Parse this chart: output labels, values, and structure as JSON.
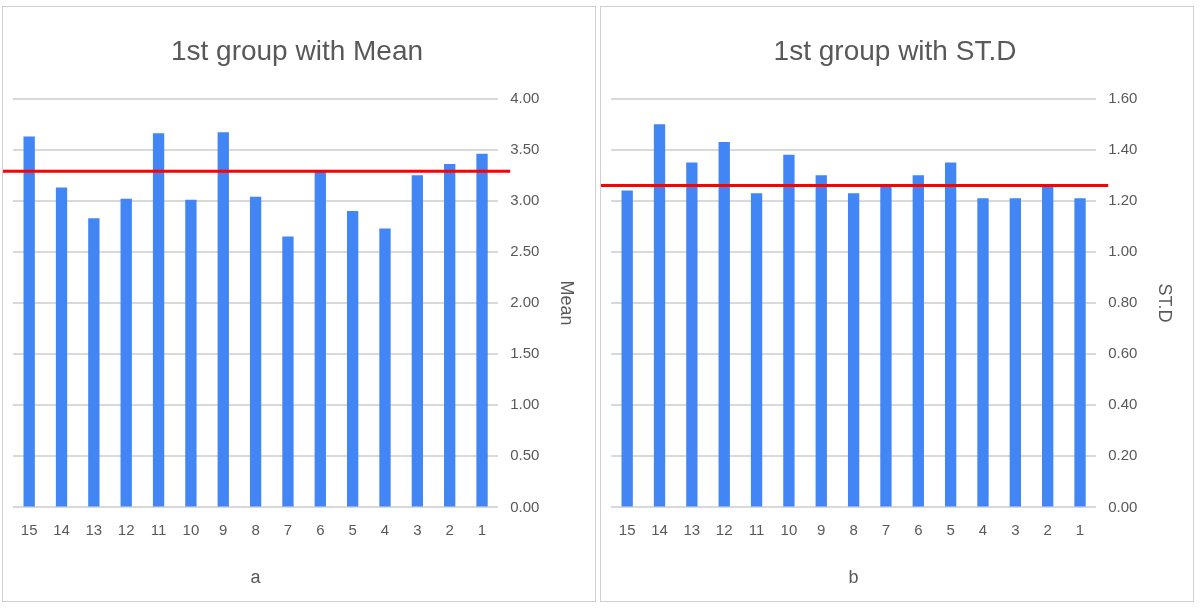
{
  "chart_data": [
    {
      "type": "bar",
      "title": "1st group with Mean",
      "xlabel": "a",
      "ylabel": "Mean",
      "categories": [
        "15",
        "14",
        "13",
        "12",
        "11",
        "10",
        "9",
        "8",
        "7",
        "6",
        "5",
        "4",
        "3",
        "2",
        "1"
      ],
      "series": [
        {
          "color": "#4285f4",
          "values": [
            3.63,
            3.13,
            2.83,
            3.02,
            3.66,
            3.01,
            3.67,
            3.04,
            2.65,
            3.29,
            2.9,
            2.73,
            3.25,
            3.36,
            3.46
          ]
        }
      ],
      "ylim": [
        0,
        4
      ],
      "yticks": [
        {
          "value": 0,
          "label": "0.00"
        },
        {
          "value": 0.5,
          "label": "0.50"
        },
        {
          "value": 1,
          "label": "1.00"
        },
        {
          "value": 1.5,
          "label": "1.50"
        },
        {
          "value": 2,
          "label": "2.00"
        },
        {
          "value": 2.5,
          "label": "2.50"
        },
        {
          "value": 3,
          "label": "3.00"
        },
        {
          "value": 3.5,
          "label": "3.50"
        },
        {
          "value": 4,
          "label": "4.00"
        }
      ],
      "grid": "y",
      "legend": false,
      "ref_lines": [
        {
          "axis": "y",
          "value": 3.29,
          "color": "#ff0000"
        }
      ]
    },
    {
      "type": "bar",
      "title": "1st group with ST.D",
      "xlabel": "b",
      "ylabel": "ST.D",
      "categories": [
        "15",
        "14",
        "13",
        "12",
        "11",
        "10",
        "9",
        "8",
        "7",
        "6",
        "5",
        "4",
        "3",
        "2",
        "1"
      ],
      "series": [
        {
          "color": "#4285f4",
          "values": [
            1.24,
            1.5,
            1.35,
            1.43,
            1.23,
            1.38,
            1.3,
            1.23,
            1.26,
            1.3,
            1.35,
            1.21,
            1.21,
            1.26,
            1.21
          ]
        }
      ],
      "ylim": [
        0,
        1.6
      ],
      "yticks": [
        {
          "value": 0,
          "label": "0.00"
        },
        {
          "value": 0.2,
          "label": "0.20"
        },
        {
          "value": 0.4,
          "label": "0.40"
        },
        {
          "value": 0.6,
          "label": "0.60"
        },
        {
          "value": 0.8,
          "label": "0.80"
        },
        {
          "value": 1,
          "label": "1.00"
        },
        {
          "value": 1.2,
          "label": "1.20"
        },
        {
          "value": 1.4,
          "label": "1.40"
        },
        {
          "value": 1.6,
          "label": "1.60"
        }
      ],
      "grid": "y",
      "legend": false,
      "ref_lines": [
        {
          "axis": "y",
          "value": 1.26,
          "color": "#ff0000"
        }
      ]
    }
  ]
}
